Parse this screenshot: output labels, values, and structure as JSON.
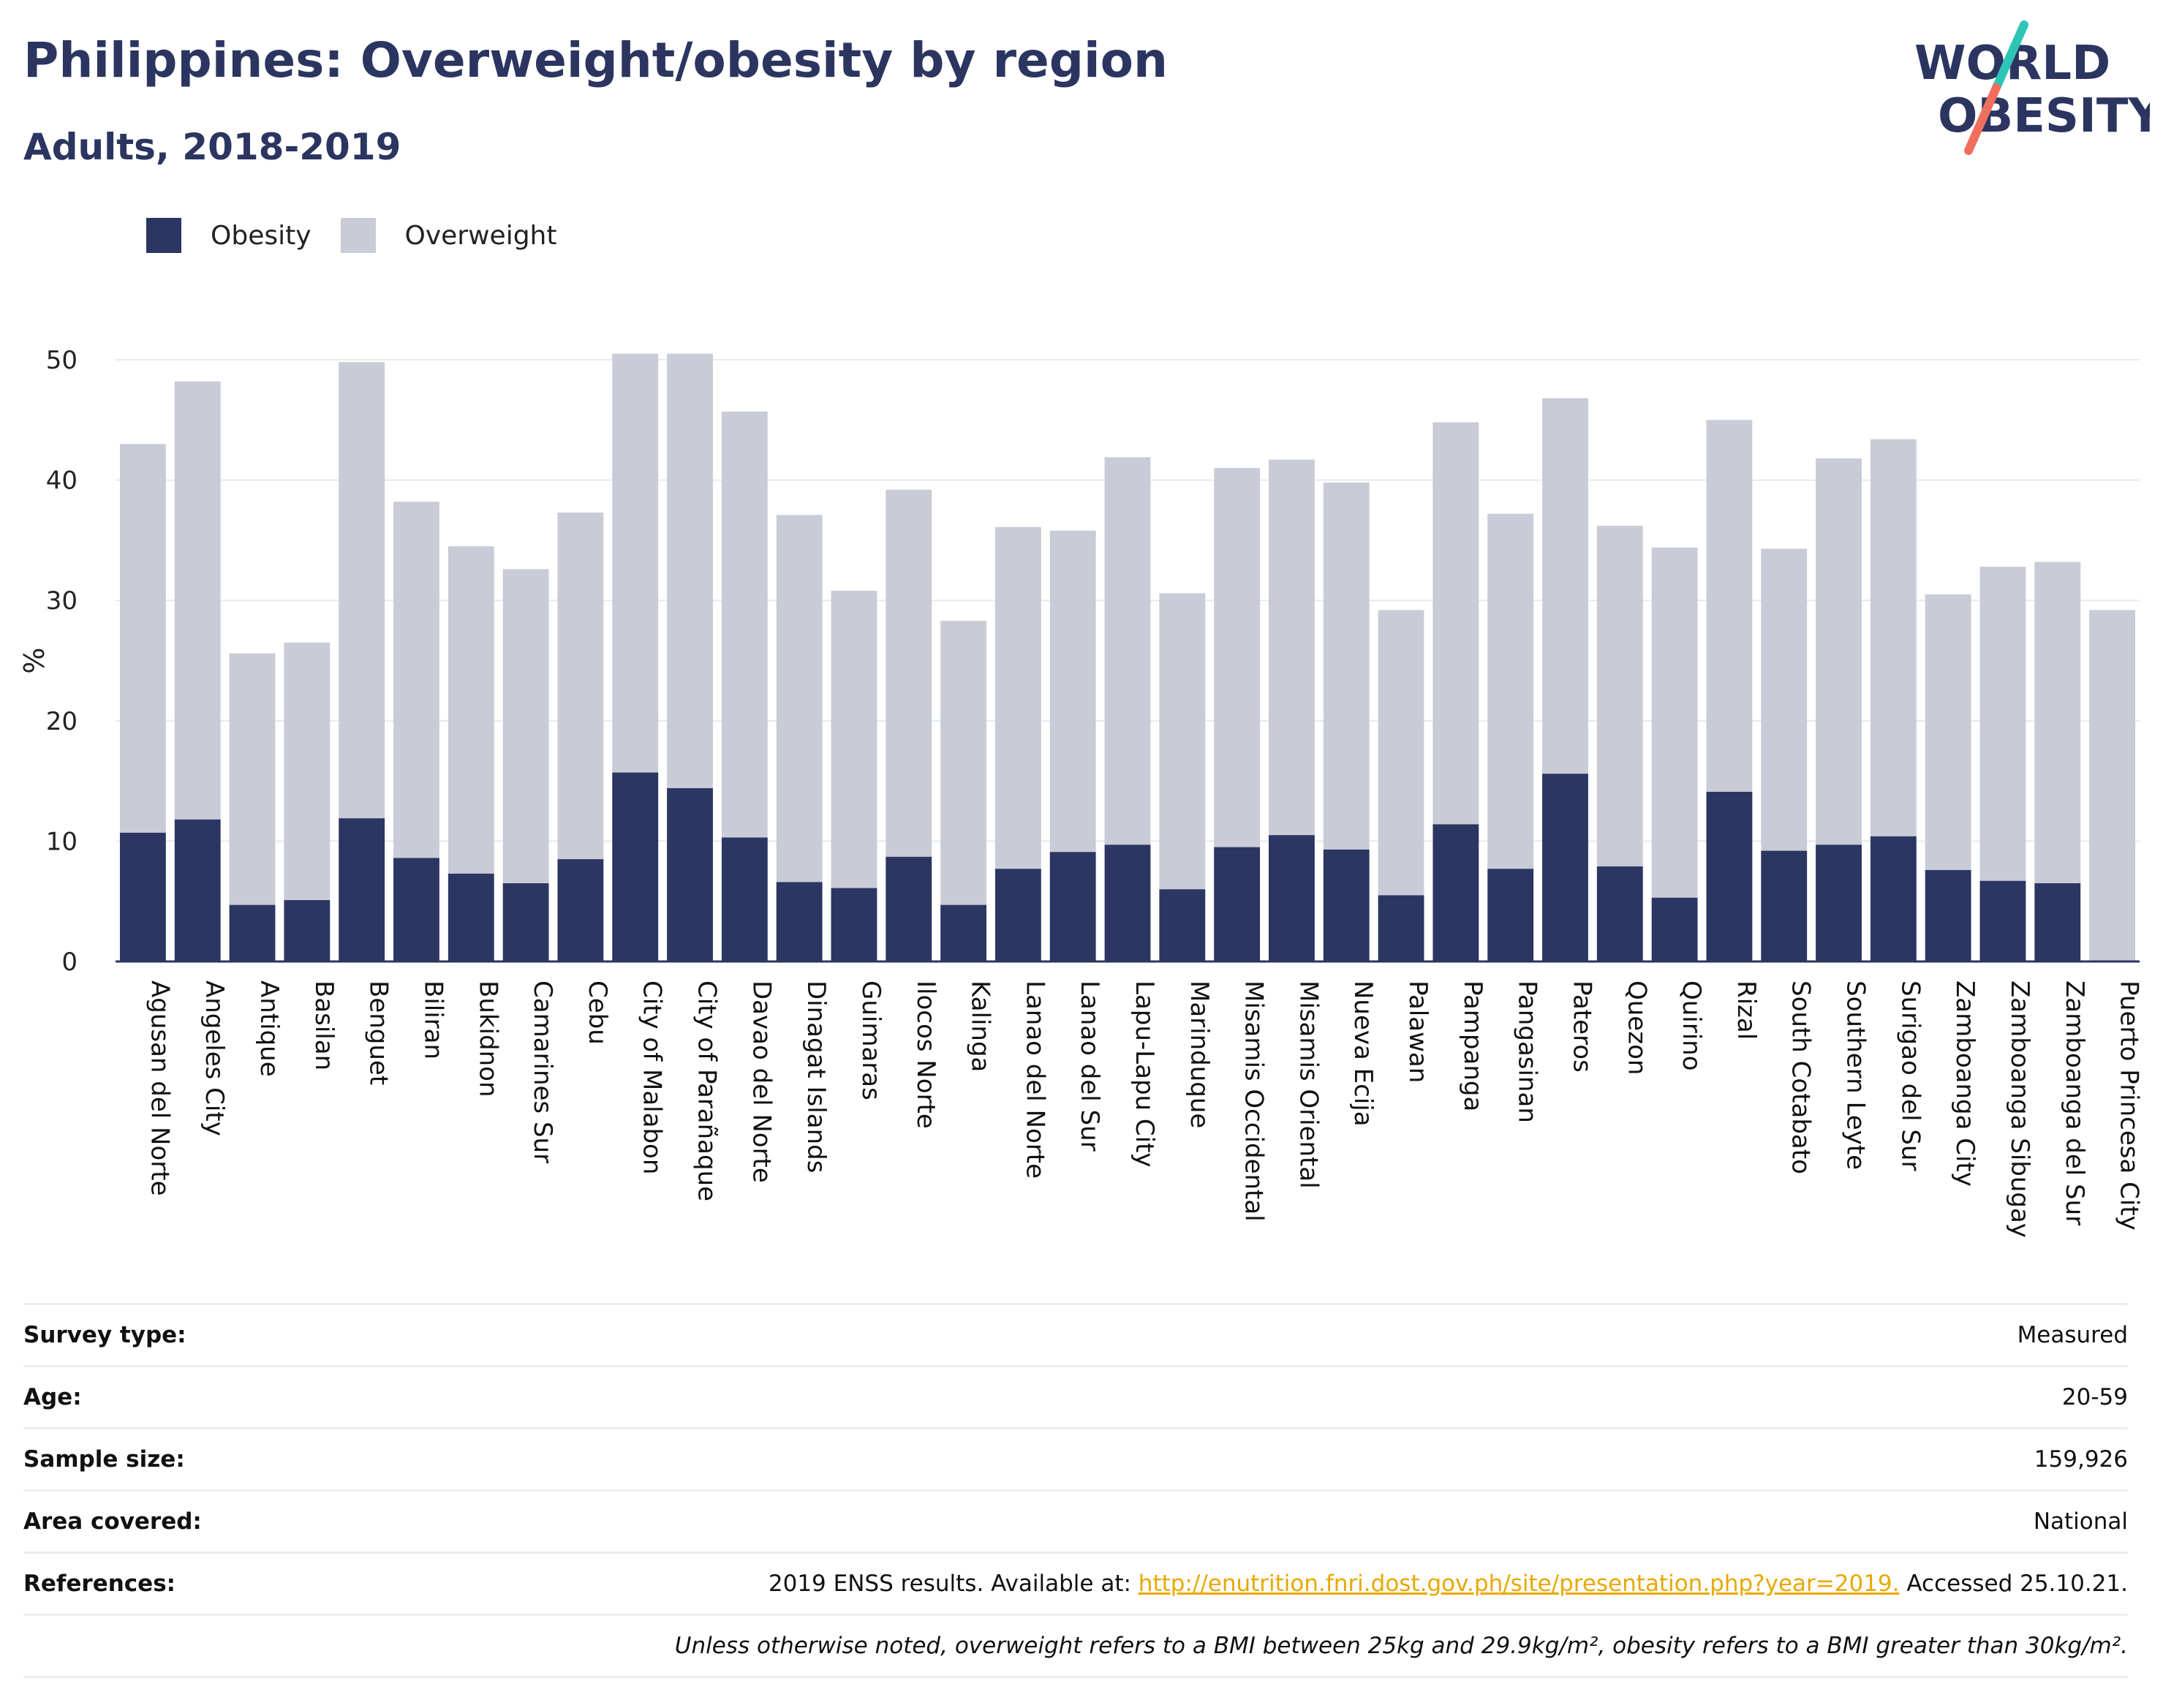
{
  "header": {
    "title": "Philippines: Overweight/obesity by region",
    "subtitle": "Adults, 2018-2019",
    "logo_line1": "WORLD",
    "logo_line2": "OBESITY"
  },
  "legend": {
    "obesity_label": "Obesity",
    "overweight_label": "Overweight"
  },
  "colors": {
    "obesity": "#2b3662",
    "overweight": "#c9cbd7",
    "logo_accent_teal": "#2ec4b6",
    "logo_accent_coral": "#ef6f5e",
    "link": "#e8a800"
  },
  "chart_data": {
    "type": "bar",
    "stacked": true,
    "ylabel": "%",
    "ylim": [
      0,
      50
    ],
    "yticks": [
      0,
      10,
      20,
      30,
      40,
      50
    ],
    "grid": true,
    "legend_position": "top-left",
    "categories": [
      "Agusan del Norte",
      "Angeles City",
      "Antique",
      "Basilan",
      "Benguet",
      "Biliran",
      "Bukidnon",
      "Camarines Sur",
      "Cebu",
      "City of Malabon",
      "City of Parañaque",
      "Davao del Norte",
      "Dinagat Islands",
      "Guimaras",
      "Ilocos Norte",
      "Kalinga",
      "Lanao del Norte",
      "Lanao del Sur",
      "Lapu-Lapu City",
      "Marinduque",
      "Misamis Occidental",
      "Misamis Oriental",
      "Nueva Ecija",
      "Palawan",
      "Pampanga",
      "Pangasinan",
      "Pateros",
      "Quezon",
      "Quirino",
      "Rizal",
      "South Cotabato",
      "Southern Leyte",
      "Surigao del Sur",
      "Zamboanga City",
      "Zamboanga Sibugay",
      "Zamboanga del Sur",
      "Puerto Princesa City"
    ],
    "series": [
      {
        "name": "Obesity",
        "values": [
          10.7,
          11.8,
          4.7,
          5.1,
          11.9,
          8.6,
          7.3,
          6.5,
          8.5,
          15.7,
          14.4,
          10.3,
          6.6,
          6.1,
          8.7,
          4.7,
          7.7,
          9.1,
          9.7,
          6.0,
          9.5,
          10.5,
          9.3,
          5.5,
          11.4,
          7.7,
          15.6,
          7.9,
          5.3,
          14.1,
          9.2,
          9.7,
          10.4,
          7.6,
          6.7,
          6.5,
          0
        ]
      },
      {
        "name": "Overweight",
        "values": [
          32.3,
          36.4,
          20.9,
          21.4,
          37.9,
          29.6,
          27.2,
          26.1,
          28.8,
          34.8,
          36.1,
          35.4,
          30.5,
          24.7,
          30.5,
          23.6,
          28.4,
          26.7,
          32.2,
          24.6,
          31.5,
          31.2,
          30.5,
          23.7,
          33.4,
          29.5,
          31.2,
          28.3,
          29.1,
          30.9,
          25.1,
          32.1,
          33.0,
          22.9,
          26.1,
          26.7,
          29.2
        ]
      }
    ]
  },
  "info": {
    "survey_type_label": "Survey type:",
    "survey_type": "Measured",
    "age_label": "Age:",
    "age": "20-59",
    "sample_size_label": "Sample size:",
    "sample_size": "159,926",
    "area_label": "Area covered:",
    "area": "National",
    "references_label": "References:",
    "references_prefix": "2019 ENSS results. Available at: ",
    "references_link": "http://enutrition.fnri.dost.gov.ph/site/presentation.php?year=2019.",
    "references_suffix": " Accessed 25.10.21.",
    "note": "Unless otherwise noted, overweight refers to a BMI between 25kg and 29.9kg/m², obesity refers to a BMI greater than 30kg/m²."
  }
}
